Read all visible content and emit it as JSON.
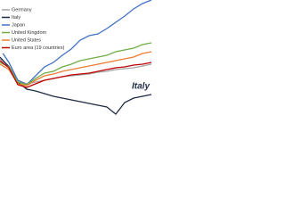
{
  "chart_data": {
    "type": "line",
    "annotation": "Italy",
    "x": [
      0,
      10,
      20,
      30,
      40,
      50,
      60,
      70,
      80,
      90,
      100,
      110,
      120,
      130,
      140,
      150,
      160,
      170
    ],
    "xlim": [
      0,
      175
    ],
    "ylim": [
      0,
      130
    ],
    "series": [
      {
        "name": "Germany",
        "color": "#a5a5a5",
        "values": [
          64,
          56,
          40,
          36,
          38,
          40,
          42,
          44,
          45,
          46,
          47,
          49,
          50,
          52,
          53,
          54,
          56,
          58
        ]
      },
      {
        "name": "Italy",
        "color": "#1f2a44",
        "values": [
          66,
          55,
          38,
          30,
          28,
          25,
          22,
          20,
          18,
          16,
          14,
          12,
          10,
          2,
          15,
          20,
          22,
          24
        ]
      },
      {
        "name": "Japan",
        "color": "#4472c4",
        "values": [
          75,
          60,
          40,
          35,
          45,
          55,
          60,
          68,
          75,
          85,
          90,
          92,
          98,
          105,
          112,
          120,
          126,
          130
        ]
      },
      {
        "name": "United Kingdom",
        "color": "#70ad47",
        "values": [
          60,
          55,
          38,
          35,
          42,
          48,
          50,
          55,
          58,
          62,
          64,
          66,
          68,
          72,
          74,
          76,
          80,
          82
        ]
      },
      {
        "name": "United States",
        "color": "#ed7d31",
        "values": [
          58,
          52,
          36,
          34,
          40,
          45,
          47,
          50,
          52,
          54,
          56,
          58,
          60,
          62,
          64,
          66,
          70,
          72
        ]
      },
      {
        "name": "Euro area (19 countries)",
        "color": "#c00000",
        "values": [
          62,
          54,
          35,
          32,
          36,
          40,
          42,
          44,
          46,
          47,
          48,
          50,
          52,
          54,
          55,
          57,
          58,
          60
        ]
      }
    ]
  }
}
